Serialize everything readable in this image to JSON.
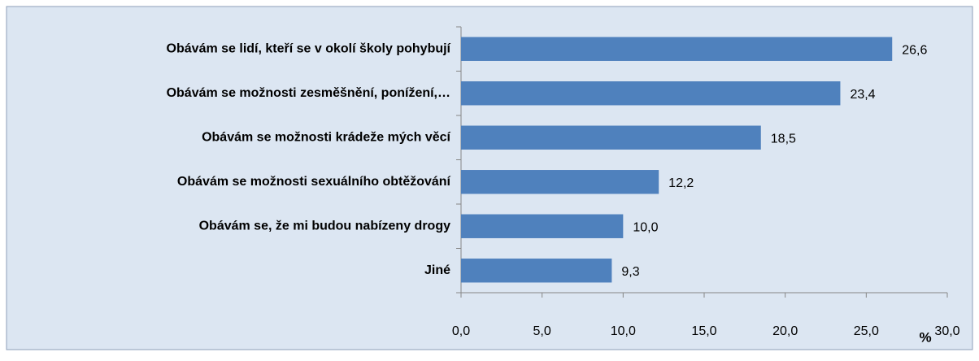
{
  "chart_data": {
    "type": "bar",
    "orientation": "horizontal",
    "categories": [
      "Obávám se lidí, kteří se v okolí školy pohybují",
      "Obávám se možnosti zesměšnění, ponížení,…",
      "Obávám se možnosti krádeže mých věcí",
      "Obávám se možnosti sexuálního obtěžování",
      "Obávám se, že mi budou nabízeny drogy",
      "Jiné"
    ],
    "values": [
      26.6,
      23.4,
      18.5,
      12.2,
      10.0,
      9.3
    ],
    "value_labels": [
      "26,6",
      "23,4",
      "18,5",
      "12,2",
      "10,0",
      "9,3"
    ],
    "color": "#4f81bd",
    "xlabel": "%",
    "xlim": [
      0,
      30
    ],
    "xticks": [
      {
        "value": 0,
        "label": "0,0"
      },
      {
        "value": 5,
        "label": "5,0"
      },
      {
        "value": 10,
        "label": "10,0"
      },
      {
        "value": 15,
        "label": "15,0"
      },
      {
        "value": 20,
        "label": "20,0"
      },
      {
        "value": 25,
        "label": "25,0"
      },
      {
        "value": 30,
        "label": "30,0"
      }
    ],
    "grid": false
  }
}
